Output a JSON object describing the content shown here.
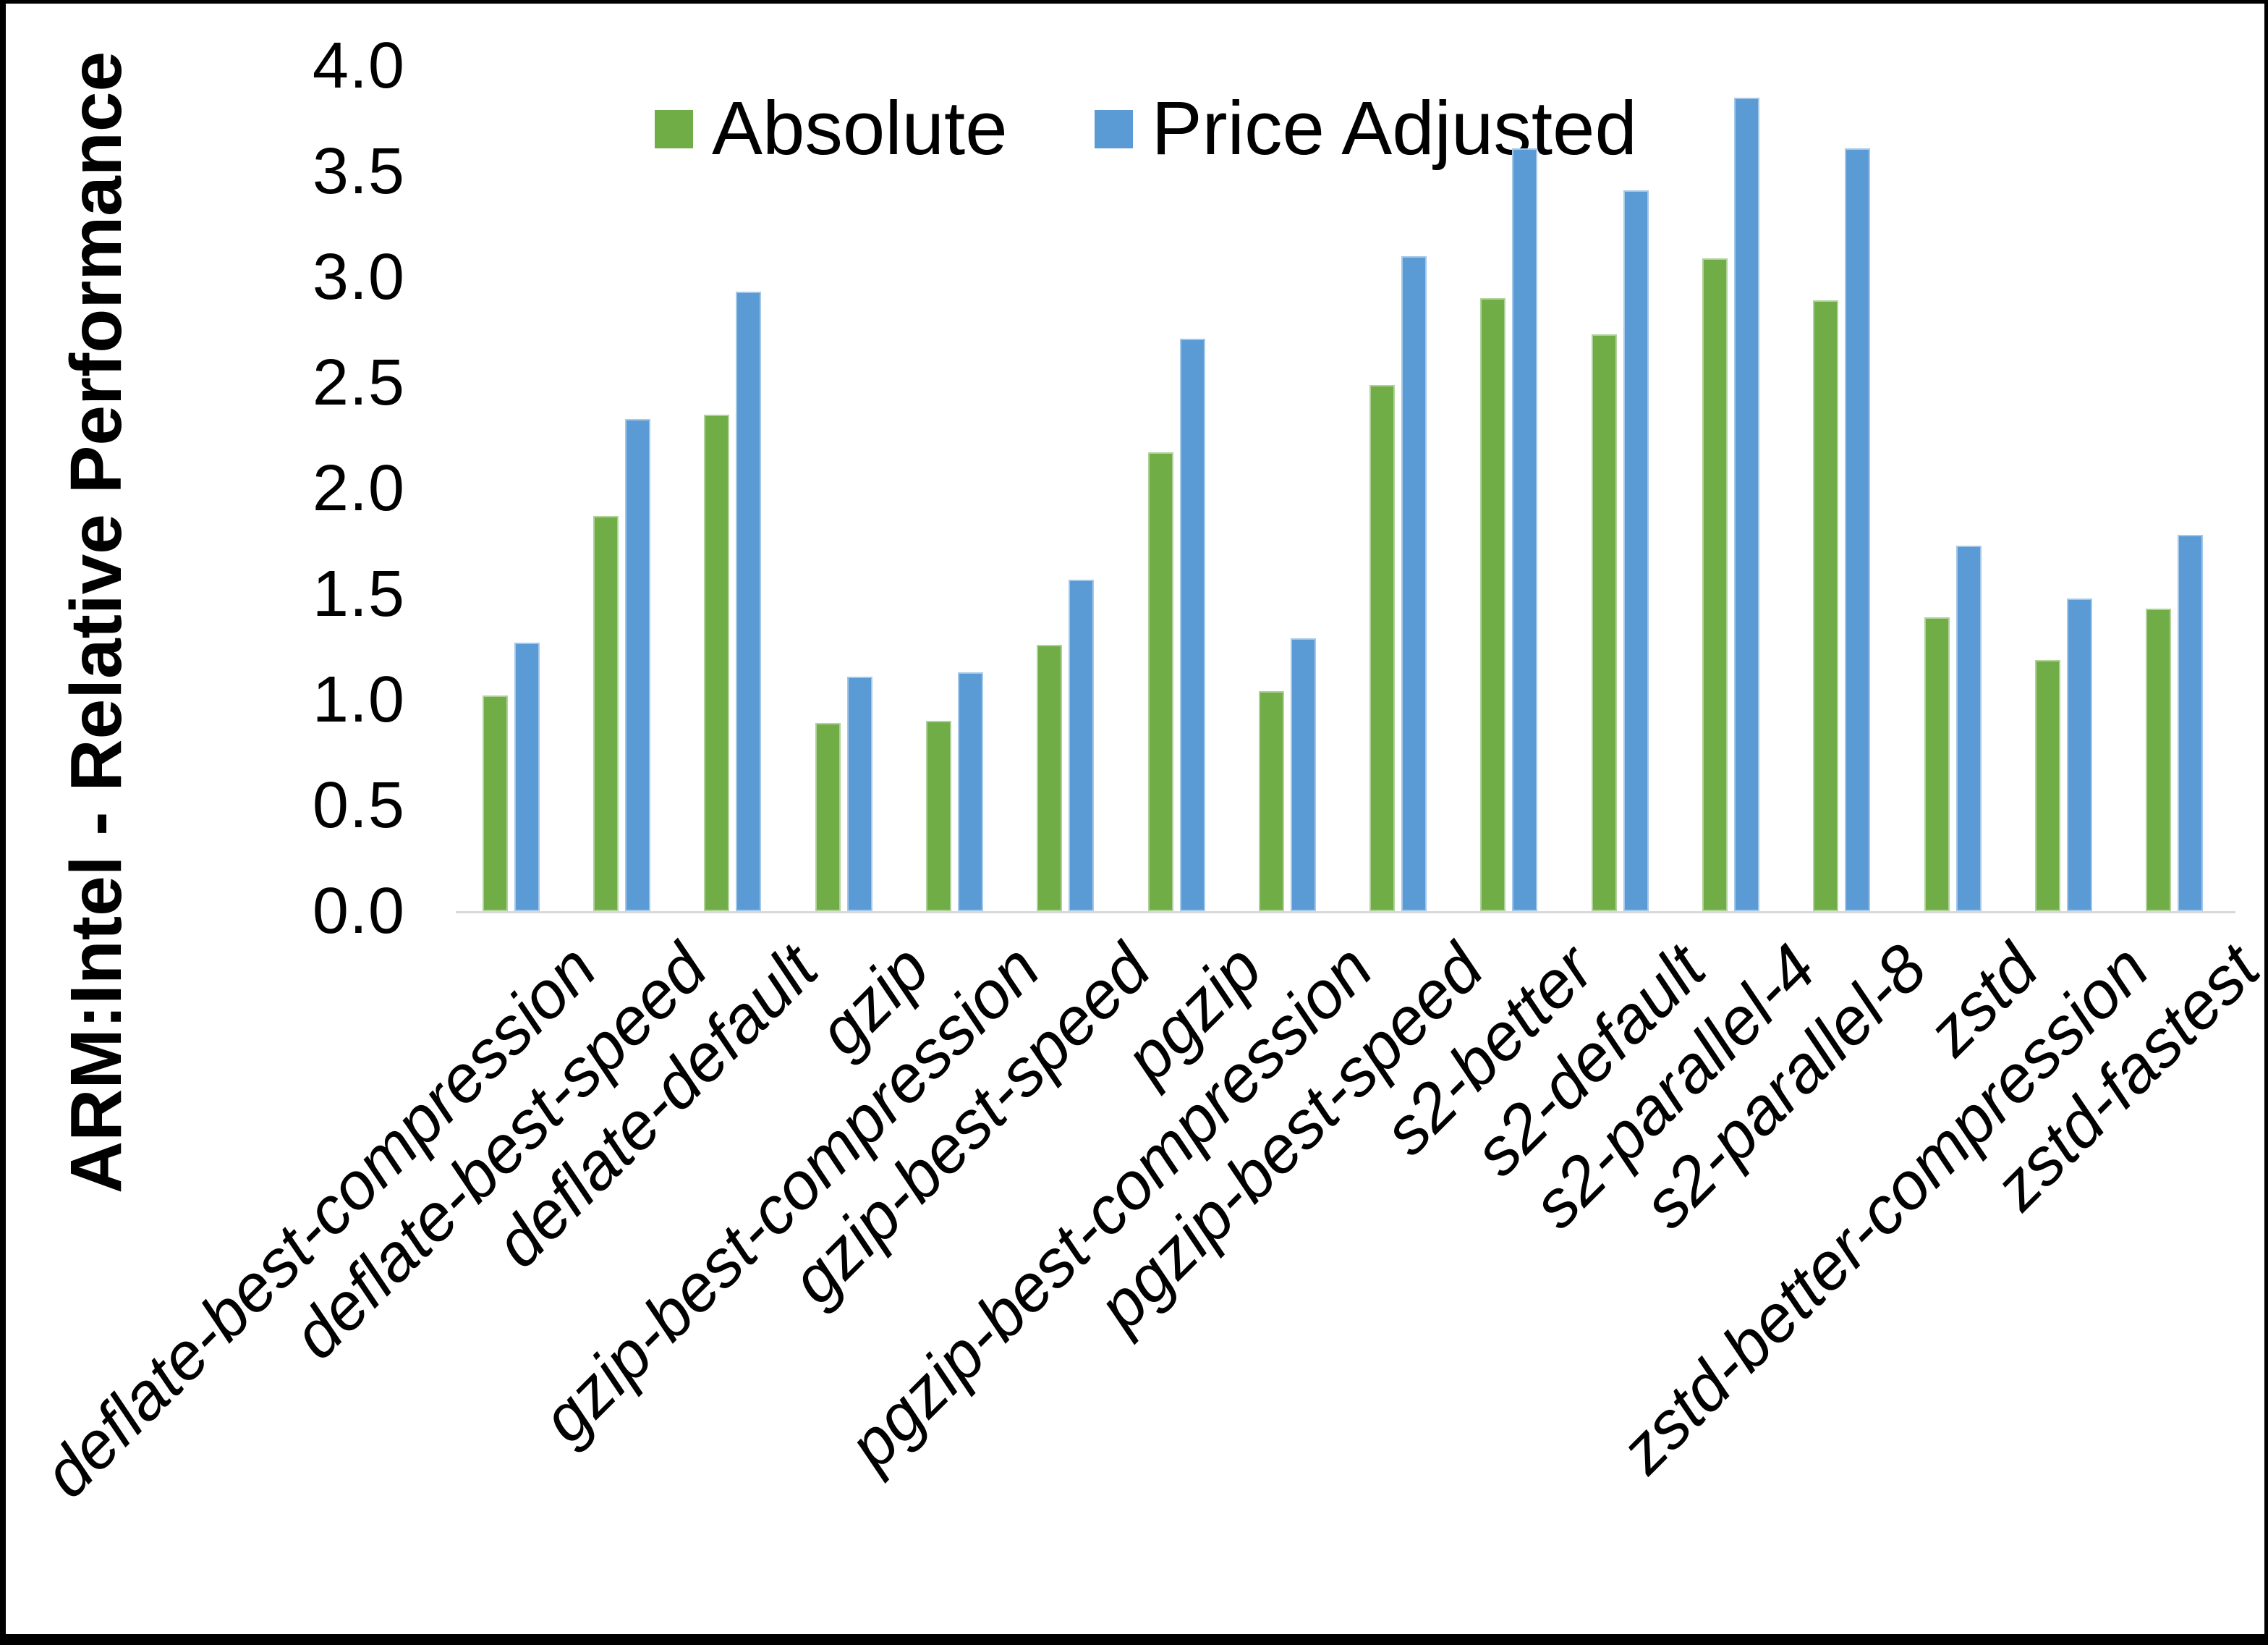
{
  "legend": {
    "items": [
      {
        "label": "Absolute",
        "color": "#70AD47"
      },
      {
        "label": "Price Adjusted",
        "color": "#5B9BD5"
      }
    ]
  },
  "y_axis": {
    "label": "ARM:Intel - Relative Performance"
  },
  "chart_data": {
    "type": "bar",
    "title": "",
    "xlabel": "",
    "ylabel": "ARM:Intel - Relative Performance",
    "ylim": [
      0.0,
      4.0
    ],
    "ytick_step": 0.5,
    "ytick_labels": [
      "0.0",
      "0.5",
      "1.0",
      "1.5",
      "2.0",
      "2.5",
      "3.0",
      "3.5",
      "4.0"
    ],
    "grid": false,
    "legend_position": "top-center",
    "axis_line_color": "#d9d9d9",
    "categories": [
      "deflate-best-compression",
      "deflate-best-speed",
      "deflate-default",
      "gzip",
      "gzip-best-compression",
      "gzip-best-speed",
      "pgzip",
      "pgzip-best-compression",
      "pgzip-best-speed",
      "s2-better",
      "s2-default",
      "s2-parallel-4",
      "s2-parallel-8",
      "zstd",
      "zstd-better-compression",
      "zstd-fastest"
    ],
    "series": [
      {
        "name": "Absolute",
        "color": "#70AD47",
        "values": [
          1.02,
          1.87,
          2.35,
          0.89,
          0.9,
          1.26,
          2.17,
          1.04,
          2.49,
          2.9,
          2.73,
          3.09,
          2.89,
          1.39,
          1.19,
          1.43
        ]
      },
      {
        "name": "Price Adjusted",
        "color": "#5B9BD5",
        "values": [
          1.27,
          2.33,
          2.93,
          1.11,
          1.13,
          1.57,
          2.71,
          1.29,
          3.1,
          3.61,
          3.41,
          3.85,
          3.61,
          1.73,
          1.48,
          1.78
        ]
      }
    ]
  }
}
